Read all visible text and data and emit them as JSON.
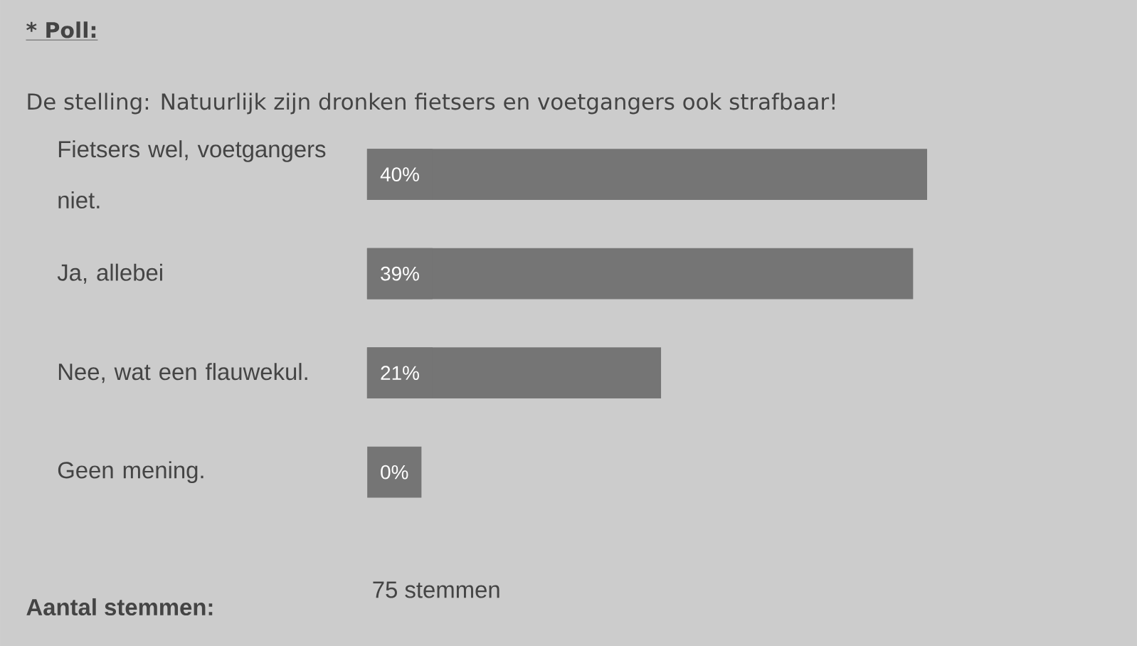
{
  "chart_data": {
    "type": "bar",
    "orientation": "horizontal",
    "title": "* Poll:",
    "subtitle": "De stelling: Natuurlijk zijn dronken fietsers en voetgangers ook strafbaar!",
    "categories": [
      "Fietsers wel, voetgangers niet.",
      "Ja, allebei",
      "Nee, wat een flauwekul.",
      "Geen mening."
    ],
    "values": [
      40,
      39,
      21,
      0
    ],
    "value_labels": [
      "40%",
      "39%",
      "21%",
      "0%"
    ],
    "color": "#757575",
    "annotations": [
      "Aantal stemmen:",
      "75 stemmen"
    ]
  }
}
